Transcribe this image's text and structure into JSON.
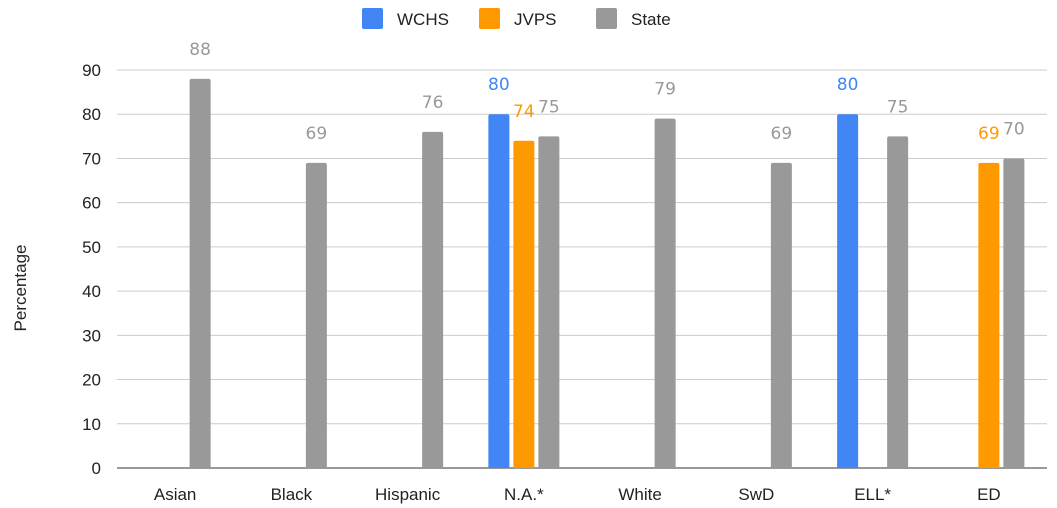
{
  "chart_data": {
    "type": "bar",
    "title": "",
    "xlabel": "",
    "ylabel": "Percentage",
    "ylim": [
      0,
      90
    ],
    "yticks": [
      0,
      10,
      20,
      30,
      40,
      50,
      60,
      70,
      80,
      90
    ],
    "grid": true,
    "legend_position": "top",
    "categories": [
      "Asian",
      "Black",
      "Hispanic",
      "N.A.*",
      "White",
      "SwD",
      "ELL*",
      "ED"
    ],
    "series": [
      {
        "name": "WCHS",
        "color": "#4285f4",
        "values": [
          null,
          null,
          null,
          80,
          null,
          null,
          80,
          null
        ]
      },
      {
        "name": "JVPS",
        "color": "#ff9900",
        "values": [
          null,
          null,
          null,
          74,
          null,
          null,
          null,
          69
        ]
      },
      {
        "name": "State",
        "color": "#999999",
        "values": [
          88,
          69,
          76,
          75,
          79,
          69,
          75,
          70
        ]
      }
    ]
  }
}
